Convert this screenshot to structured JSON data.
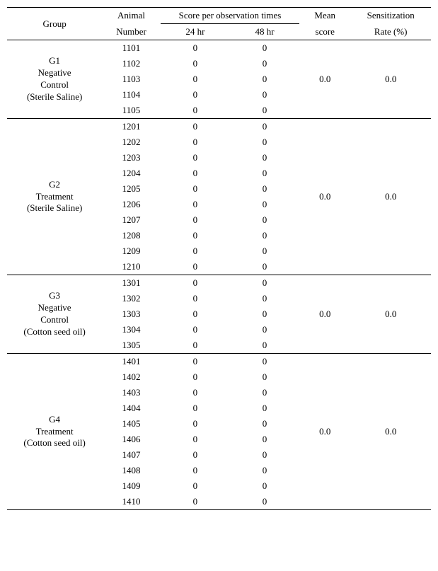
{
  "header": {
    "group": "Group",
    "animal": "Animal\nNumber",
    "obsHeader": "Score per observation times",
    "obs24": "24 hr",
    "obs48": "48 hr",
    "mean": "Mean\nscore",
    "sens": "Sensitization\nRate (%)"
  },
  "groups": [
    {
      "label": "G1\nNegative\nControl\n(Sterile Saline)",
      "mean": "0.0",
      "sens": "0.0",
      "rows": [
        {
          "an": "1101",
          "h24": "0",
          "h48": "0"
        },
        {
          "an": "1102",
          "h24": "0",
          "h48": "0"
        },
        {
          "an": "1103",
          "h24": "0",
          "h48": "0"
        },
        {
          "an": "1104",
          "h24": "0",
          "h48": "0"
        },
        {
          "an": "1105",
          "h24": "0",
          "h48": "0"
        }
      ]
    },
    {
      "label": "G2\nTreatment\n(Sterile Saline)",
      "mean": "0.0",
      "sens": "0.0",
      "rows": [
        {
          "an": "1201",
          "h24": "0",
          "h48": "0"
        },
        {
          "an": "1202",
          "h24": "0",
          "h48": "0"
        },
        {
          "an": "1203",
          "h24": "0",
          "h48": "0"
        },
        {
          "an": "1204",
          "h24": "0",
          "h48": "0"
        },
        {
          "an": "1205",
          "h24": "0",
          "h48": "0"
        },
        {
          "an": "1206",
          "h24": "0",
          "h48": "0"
        },
        {
          "an": "1207",
          "h24": "0",
          "h48": "0"
        },
        {
          "an": "1208",
          "h24": "0",
          "h48": "0"
        },
        {
          "an": "1209",
          "h24": "0",
          "h48": "0"
        },
        {
          "an": "1210",
          "h24": "0",
          "h48": "0"
        }
      ]
    },
    {
      "label": "G3\nNegative\nControl\n(Cotton seed oil)",
      "mean": "0.0",
      "sens": "0.0",
      "rows": [
        {
          "an": "1301",
          "h24": "0",
          "h48": "0"
        },
        {
          "an": "1302",
          "h24": "0",
          "h48": "0"
        },
        {
          "an": "1303",
          "h24": "0",
          "h48": "0"
        },
        {
          "an": "1304",
          "h24": "0",
          "h48": "0"
        },
        {
          "an": "1305",
          "h24": "0",
          "h48": "0"
        }
      ]
    },
    {
      "label": "G4\nTreatment\n(Cotton seed oil)",
      "mean": "0.0",
      "sens": "0.0",
      "rows": [
        {
          "an": "1401",
          "h24": "0",
          "h48": "0"
        },
        {
          "an": "1402",
          "h24": "0",
          "h48": "0"
        },
        {
          "an": "1403",
          "h24": "0",
          "h48": "0"
        },
        {
          "an": "1404",
          "h24": "0",
          "h48": "0"
        },
        {
          "an": "1405",
          "h24": "0",
          "h48": "0"
        },
        {
          "an": "1406",
          "h24": "0",
          "h48": "0"
        },
        {
          "an": "1407",
          "h24": "0",
          "h48": "0"
        },
        {
          "an": "1408",
          "h24": "0",
          "h48": "0"
        },
        {
          "an": "1409",
          "h24": "0",
          "h48": "0"
        },
        {
          "an": "1410",
          "h24": "0",
          "h48": "0"
        }
      ]
    }
  ]
}
